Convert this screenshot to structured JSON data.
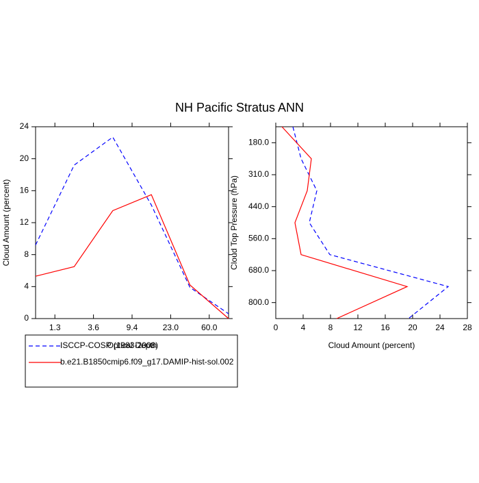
{
  "chart_data": [
    {
      "type": "line",
      "title": "NH Pacific Stratus ANN",
      "xlabel": "Optical Depth",
      "ylabel": "Cloud Amount (percent)",
      "x": [
        0,
        1,
        2,
        3,
        4,
        5
      ],
      "xlim": [
        0,
        5
      ],
      "xticks": [
        {
          "value": 0.5,
          "label": "1.3"
        },
        {
          "value": 1.5,
          "label": "3.6"
        },
        {
          "value": 2.5,
          "label": "9.4"
        },
        {
          "value": 3.5,
          "label": "23.0"
        },
        {
          "value": 4.5,
          "label": "60.0"
        }
      ],
      "ylim": [
        0,
        24
      ],
      "yticks": [
        0,
        4,
        8,
        12,
        16,
        20,
        24
      ],
      "series": [
        {
          "name": "ISCCP-COSP (1983-2008)",
          "color": "#0000ff",
          "linestyle": "dashed",
          "values": [
            9.2,
            19.2,
            22.7,
            14.2,
            3.9,
            0.6
          ]
        },
        {
          "name": "b.e21.B1850cmip6.f09_g17.DAMIP-hist-sol.002",
          "color": "#ff0000",
          "linestyle": "solid",
          "values": [
            5.3,
            6.5,
            13.5,
            15.5,
            4.2,
            0
          ]
        }
      ]
    },
    {
      "type": "line",
      "orientation": "horizontal",
      "xlabel": "Cloud Amount (percent)",
      "ylabel": "Cloud Top Pressure (hPa)",
      "y": [
        0,
        1,
        2,
        3,
        4,
        5,
        6
      ],
      "ylim": [
        0,
        6
      ],
      "yreverse": true,
      "yticks": [
        {
          "value": 0.5,
          "label": "180.0"
        },
        {
          "value": 1.5,
          "label": "310.0"
        },
        {
          "value": 2.5,
          "label": "440.0"
        },
        {
          "value": 3.5,
          "label": "560.0"
        },
        {
          "value": 4.5,
          "label": "680.0"
        },
        {
          "value": 5.5,
          "label": "800.0"
        }
      ],
      "xlim": [
        0,
        28
      ],
      "xticks": [
        0,
        4,
        8,
        12,
        16,
        20,
        24,
        28
      ],
      "series": [
        {
          "color": "#0000ff",
          "linestyle": "dashed",
          "values": [
            2.5,
            3.7,
            6.0,
            4.9,
            7.9,
            25.2,
            19.4
          ]
        },
        {
          "color": "#ff0000",
          "linestyle": "solid",
          "values": [
            0.9,
            5.2,
            4.6,
            2.8,
            3.7,
            19.2,
            8.9
          ]
        }
      ]
    }
  ]
}
